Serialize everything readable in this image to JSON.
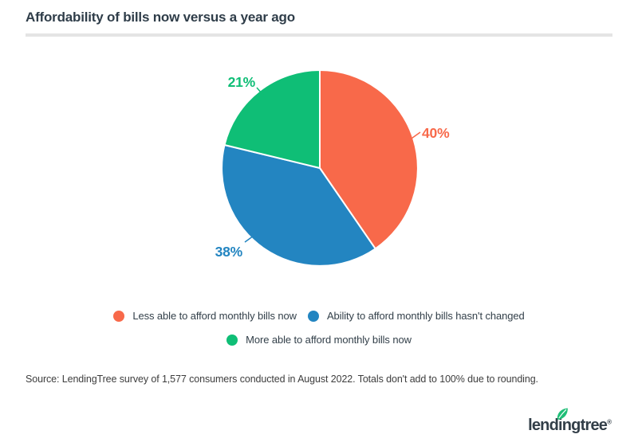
{
  "header": {
    "title": "Affordability of bills now versus a year ago"
  },
  "chart_data": {
    "type": "pie",
    "title": "Affordability of bills now versus a year ago",
    "unit": "%",
    "slices": [
      {
        "label": "Less able to afford monthly bills now",
        "value": 40,
        "display": "40%",
        "color": "#F8694A"
      },
      {
        "label": "Ability to afford monthly bills hasn't changed",
        "value": 38,
        "display": "38%",
        "color": "#2385C1"
      },
      {
        "label": "More able to afford monthly bills now",
        "value": 21,
        "display": "21%",
        "color": "#0FBE76"
      }
    ],
    "start_angle_deg": 0,
    "direction": "clockwise",
    "legend_position": "bottom",
    "separator_color": "#FFFFFF"
  },
  "source": {
    "text": "Source: LendingTree survey of 1,577 consumers conducted in August 2022. Totals don't add to 100% due to rounding."
  },
  "logo": {
    "text": "lendingtree",
    "registered_mark": "®",
    "leaf_color": "#1FBE77",
    "text_color": "#323E48"
  },
  "colors": {
    "title_text": "#2F3D49",
    "legend_text": "#33404A",
    "source_text": "#3D3D3D",
    "divider": "#E4E4E4",
    "background": "#FFFFFF"
  }
}
